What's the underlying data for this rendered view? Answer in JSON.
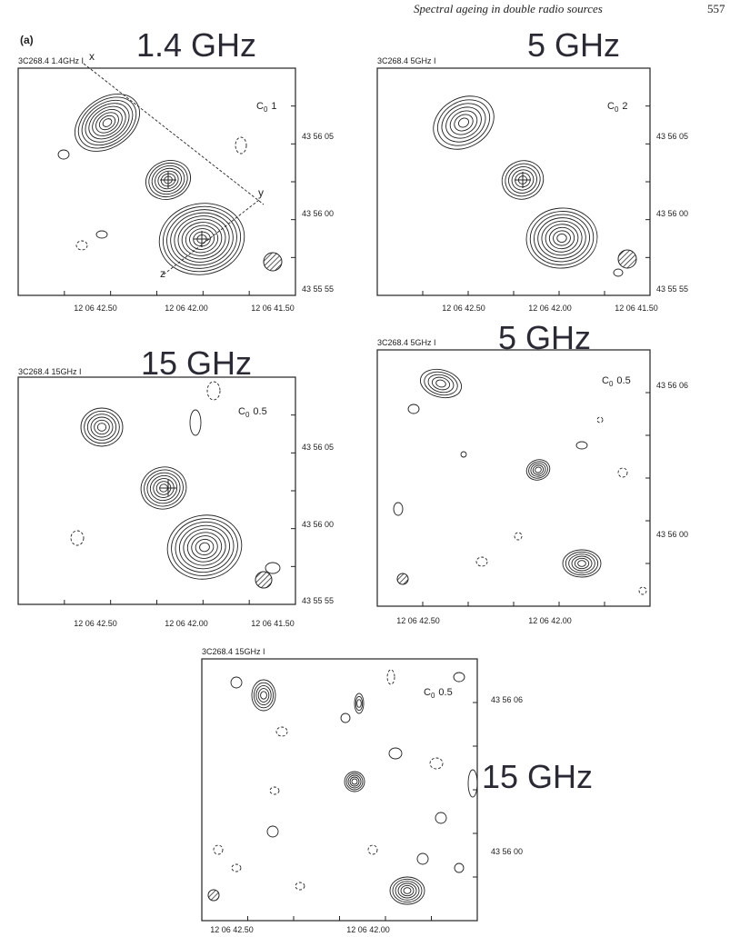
{
  "header": {
    "running_title": "Spectral ageing in double radio sources",
    "page_number": "557"
  },
  "figure_label": "(a)",
  "panels": [
    {
      "caption": "3C268.4  1.4GHz  I",
      "overlay": "1.4 GHz",
      "contour_label": {
        "symbol": "C",
        "subscript": "0",
        "value": "1"
      },
      "yticks": [
        "43 56 05",
        "43 56 00",
        "43 55 55"
      ],
      "xticks": [
        "12 06 42.50",
        "12 06 42.00",
        "12 06 41.50"
      ],
      "markers": [
        "x",
        "y",
        "z"
      ]
    },
    {
      "caption": "3C268.4  5GHz  I",
      "overlay": "5 GHz",
      "contour_label": {
        "symbol": "C",
        "subscript": "0",
        "value": "2"
      },
      "yticks": [
        "43 56 05",
        "43 56 00",
        "43 55 55"
      ],
      "xticks": [
        "12 06 42.50",
        "12 06 42.00",
        "12 06 41.50"
      ]
    },
    {
      "caption": "3C268.4  15GHz  I",
      "overlay": "15 GHz",
      "contour_label": {
        "symbol": "C",
        "subscript": "0",
        "value": "0.5"
      },
      "yticks": [
        "43 56 05",
        "43 56 00",
        "43 55 55"
      ],
      "xticks": [
        "12 06 42.50",
        "12 06 42.00",
        "12 06 41.50"
      ]
    },
    {
      "caption": "3C268.4  5GHz  I",
      "overlay": "5 GHz",
      "contour_label": {
        "symbol": "C",
        "subscript": "0",
        "value": "0.5"
      },
      "yticks": [
        "43 56 06",
        "43 56 00"
      ],
      "xticks": [
        "12 06 42.50",
        "12 06 42.00"
      ]
    },
    {
      "caption": "3C268.4  15GHz  I",
      "overlay": "15 GHz",
      "contour_label": {
        "symbol": "C",
        "subscript": "0",
        "value": "0.5"
      },
      "yticks": [
        "43 56 06",
        "43 56 00"
      ],
      "xticks": [
        "12 06 42.50",
        "12 06 42.00"
      ]
    }
  ]
}
